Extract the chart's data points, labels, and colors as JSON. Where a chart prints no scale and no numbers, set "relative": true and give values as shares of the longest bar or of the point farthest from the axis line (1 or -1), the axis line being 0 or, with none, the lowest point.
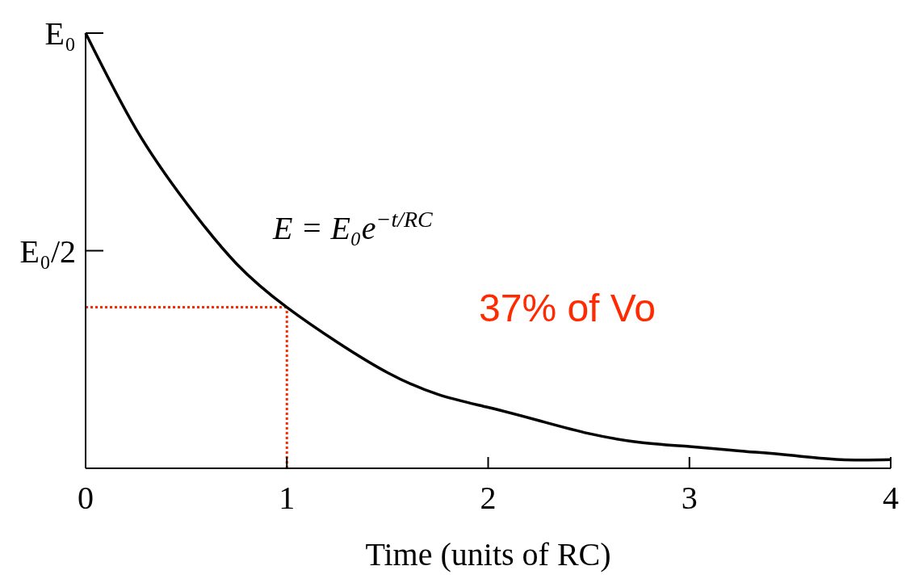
{
  "chart_data": {
    "type": "line",
    "xlabel": "Time (units of RC)",
    "relative": true,
    "x": [
      0,
      0.25,
      0.5,
      0.75,
      1,
      1.25,
      1.5,
      1.75,
      2,
      2.25,
      2.5,
      2.75,
      3,
      3.25,
      3.5,
      3.75,
      4
    ],
    "series": [
      {
        "color": "#000000",
        "values": [
          1,
          0.78,
          0.61,
          0.47,
          0.37,
          0.29,
          0.22,
          0.17,
          0.14,
          0.11,
          0.08,
          0.06,
          0.05,
          0.04,
          0.03,
          0.02,
          0.02
        ]
      }
    ],
    "xlim": [
      0,
      4
    ],
    "xticks": [
      0,
      1,
      2,
      3,
      4
    ],
    "ref_lines": [
      {
        "axis": "y",
        "value": 0.37,
        "color": "#ff2a00",
        "line_style": "dotted"
      },
      {
        "axis": "x",
        "value": 1,
        "color": "#ff2a00",
        "line_style": "dotted"
      }
    ],
    "annotations": [
      "E₀",
      "E₀/2",
      "E = E₀e$^{−t/RC}$",
      "37% of Vo"
    ],
    "marker": "none",
    "line_style": "solid"
  }
}
